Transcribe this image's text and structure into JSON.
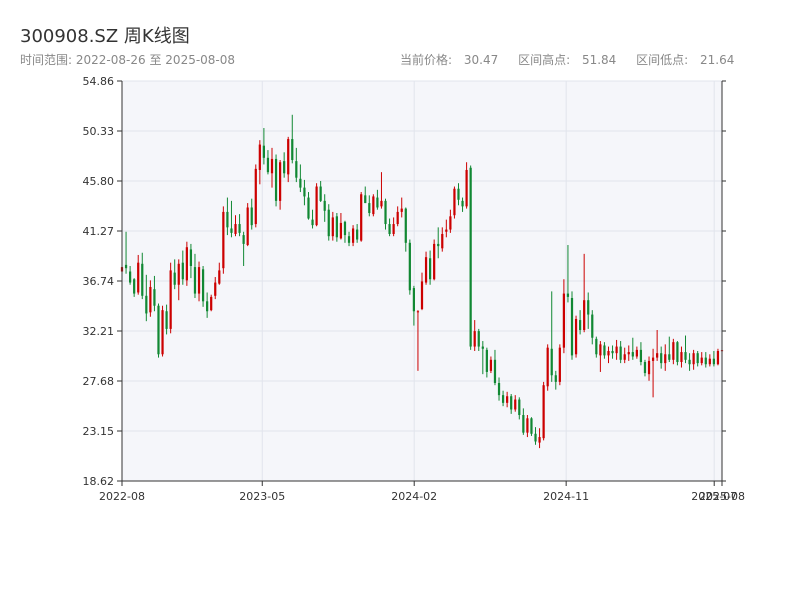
{
  "header": {
    "title": "300908.SZ 周K线图",
    "time_range_label": "时间范围:",
    "start_date": "2022-08-26",
    "range_separator": "至",
    "end_date": "2025-08-08",
    "current_price_label": "当前价格:",
    "current_price": "30.47",
    "high_label": "区间高点:",
    "high_value": "51.84",
    "low_label": "区间低点:",
    "low_value": "21.64"
  },
  "colors": {
    "up": "#cc0000",
    "down": "#118833",
    "plot_bg": "#f5f6fa",
    "grid": "#e1e4ec",
    "axis": "#333333"
  },
  "chart_data": {
    "type": "candlestick",
    "y_ticks": [
      "18.62",
      "23.15",
      "27.68",
      "32.21",
      "36.74",
      "41.27",
      "45.80",
      "50.33",
      "54.86"
    ],
    "ylim": [
      18.62,
      54.86
    ],
    "x_ticks": [
      {
        "label": "2022-08",
        "date": "2022-08-26"
      },
      {
        "label": "2023-05",
        "date": "2023-05-05"
      },
      {
        "label": "2024-02",
        "date": "2024-02-02"
      },
      {
        "label": "2024-11",
        "date": "2024-11-01"
      },
      {
        "label": "2025-07",
        "date": "2025-07-25"
      },
      {
        "label": "2025-08",
        "date": "2025-08-08"
      }
    ],
    "start_date": "2022-08-26",
    "end_date": "2025-08-08",
    "candles": [
      [
        37.6,
        38.5,
        36.0,
        38.0
      ],
      [
        38.2,
        41.2,
        37.4,
        37.9
      ],
      [
        37.6,
        38.1,
        36.4,
        36.6
      ],
      [
        36.9,
        37.0,
        35.3,
        35.6
      ],
      [
        35.7,
        39.1,
        35.5,
        38.4
      ],
      [
        38.3,
        39.3,
        35.1,
        35.4
      ],
      [
        35.4,
        37.3,
        33.1,
        33.8
      ],
      [
        33.9,
        36.8,
        33.5,
        36.2
      ],
      [
        36.0,
        37.2,
        34.0,
        34.5
      ],
      [
        34.5,
        34.7,
        29.8,
        30.1
      ],
      [
        30.1,
        34.5,
        29.9,
        34.1
      ],
      [
        34.0,
        34.6,
        31.9,
        32.4
      ],
      [
        32.4,
        38.4,
        32.0,
        37.7
      ],
      [
        37.5,
        38.7,
        36.0,
        36.4
      ],
      [
        36.4,
        38.7,
        35.0,
        38.3
      ],
      [
        38.4,
        39.5,
        36.4,
        36.9
      ],
      [
        36.8,
        40.3,
        36.3,
        39.8
      ],
      [
        39.6,
        40.1,
        37.0,
        38.1
      ],
      [
        38.0,
        39.2,
        35.2,
        35.6
      ],
      [
        35.6,
        38.5,
        34.9,
        38.0
      ],
      [
        37.8,
        38.1,
        34.4,
        34.9
      ],
      [
        34.9,
        35.7,
        33.4,
        34.0
      ],
      [
        34.1,
        35.5,
        34.0,
        35.3
      ],
      [
        35.4,
        37.1,
        35.1,
        36.6
      ],
      [
        36.5,
        38.4,
        36.4,
        37.7
      ],
      [
        37.9,
        43.5,
        37.4,
        43.0
      ],
      [
        43.0,
        44.3,
        40.9,
        41.6
      ],
      [
        41.5,
        44.0,
        40.7,
        41.1
      ],
      [
        41.0,
        42.7,
        40.8,
        41.9
      ],
      [
        41.9,
        42.8,
        40.8,
        41.1
      ],
      [
        40.9,
        41.2,
        38.1,
        40.1
      ],
      [
        40.0,
        43.8,
        39.9,
        43.4
      ],
      [
        43.4,
        44.2,
        41.4,
        41.8
      ],
      [
        41.9,
        47.3,
        41.6,
        46.9
      ],
      [
        46.8,
        49.5,
        45.5,
        49.1
      ],
      [
        49.0,
        50.6,
        47.3,
        47.9
      ],
      [
        47.9,
        48.6,
        46.4,
        46.6
      ],
      [
        46.5,
        48.8,
        45.2,
        47.8
      ],
      [
        47.8,
        48.2,
        43.5,
        44.0
      ],
      [
        44.0,
        47.7,
        43.2,
        47.5
      ],
      [
        47.6,
        48.4,
        46.1,
        46.5
      ],
      [
        46.4,
        49.8,
        45.7,
        49.6
      ],
      [
        49.6,
        51.8,
        47.4,
        47.7
      ],
      [
        47.6,
        48.8,
        45.7,
        46.1
      ],
      [
        46.0,
        47.3,
        44.8,
        45.2
      ],
      [
        45.2,
        45.9,
        43.6,
        44.4
      ],
      [
        44.3,
        44.8,
        42.3,
        42.4
      ],
      [
        42.3,
        43.2,
        41.5,
        41.8
      ],
      [
        41.8,
        45.6,
        41.7,
        45.3
      ],
      [
        45.3,
        45.8,
        43.9,
        44.0
      ],
      [
        44.0,
        44.6,
        42.1,
        43.1
      ],
      [
        43.2,
        43.7,
        40.4,
        40.8
      ],
      [
        40.8,
        43.0,
        40.4,
        42.5
      ],
      [
        42.6,
        42.9,
        40.3,
        40.7
      ],
      [
        40.6,
        42.9,
        40.5,
        42.0
      ],
      [
        42.1,
        42.2,
        40.2,
        40.9
      ],
      [
        40.8,
        41.2,
        39.9,
        40.2
      ],
      [
        40.2,
        41.8,
        39.9,
        41.5
      ],
      [
        41.4,
        41.9,
        40.2,
        40.5
      ],
      [
        40.4,
        44.8,
        40.3,
        44.6
      ],
      [
        44.5,
        45.3,
        43.8,
        43.8
      ],
      [
        43.8,
        44.5,
        42.6,
        42.9
      ],
      [
        42.8,
        44.6,
        42.6,
        44.4
      ],
      [
        44.3,
        45.0,
        43.2,
        43.4
      ],
      [
        43.5,
        46.6,
        43.3,
        44.0
      ],
      [
        44.0,
        44.2,
        41.4,
        41.9
      ],
      [
        41.9,
        42.4,
        40.8,
        41.0
      ],
      [
        41.0,
        42.5,
        40.8,
        41.9
      ],
      [
        41.9,
        43.5,
        41.7,
        43.0
      ],
      [
        43.0,
        44.3,
        42.5,
        43.3
      ],
      [
        43.3,
        43.4,
        39.4,
        40.2
      ],
      [
        40.2,
        40.5,
        35.5,
        35.9
      ],
      [
        36.1,
        36.3,
        32.7,
        34.0
      ],
      [
        33.9,
        34.1,
        28.6,
        34.0
      ],
      [
        34.2,
        37.5,
        34.1,
        36.7
      ],
      [
        36.6,
        39.4,
        36.4,
        38.9
      ],
      [
        38.8,
        39.5,
        36.4,
        36.9
      ],
      [
        36.9,
        40.5,
        36.8,
        40.1
      ],
      [
        40.1,
        41.6,
        38.8,
        39.9
      ],
      [
        39.7,
        41.6,
        39.4,
        41.0
      ],
      [
        41.2,
        42.3,
        40.7,
        41.4
      ],
      [
        41.4,
        43.2,
        41.1,
        42.6
      ],
      [
        42.7,
        45.3,
        42.4,
        45.1
      ],
      [
        45.1,
        45.6,
        43.6,
        44.1
      ],
      [
        44.0,
        44.3,
        43.0,
        43.5
      ],
      [
        43.5,
        47.5,
        43.3,
        46.8
      ],
      [
        47.0,
        47.2,
        30.5,
        30.8
      ],
      [
        30.8,
        33.2,
        30.4,
        32.2
      ],
      [
        32.2,
        32.4,
        30.4,
        30.8
      ],
      [
        30.8,
        31.3,
        28.3,
        30.6
      ],
      [
        30.5,
        30.7,
        28.0,
        28.5
      ],
      [
        28.6,
        29.9,
        28.4,
        29.6
      ],
      [
        29.6,
        30.5,
        27.3,
        27.5
      ],
      [
        27.5,
        28.0,
        25.9,
        26.4
      ],
      [
        26.4,
        26.8,
        25.4,
        25.7
      ],
      [
        25.7,
        26.7,
        25.3,
        26.3
      ],
      [
        26.3,
        26.5,
        24.7,
        25.1
      ],
      [
        25.1,
        26.4,
        24.9,
        26.0
      ],
      [
        26.0,
        26.2,
        24.2,
        24.6
      ],
      [
        24.6,
        25.2,
        22.8,
        23.0
      ],
      [
        23.0,
        24.6,
        22.6,
        24.3
      ],
      [
        24.3,
        24.4,
        22.7,
        22.9
      ],
      [
        22.9,
        23.5,
        21.9,
        22.2
      ],
      [
        22.1,
        23.4,
        21.6,
        22.6
      ],
      [
        22.5,
        27.6,
        22.3,
        27.3
      ],
      [
        27.2,
        31.0,
        26.8,
        30.7
      ],
      [
        30.6,
        35.8,
        27.6,
        28.2
      ],
      [
        28.2,
        28.6,
        26.9,
        27.6
      ],
      [
        27.6,
        31.0,
        27.3,
        30.7
      ],
      [
        30.7,
        36.9,
        30.2,
        35.6
      ],
      [
        35.6,
        40.0,
        34.8,
        35.3
      ],
      [
        35.2,
        35.8,
        29.6,
        30.0
      ],
      [
        30.1,
        33.6,
        29.8,
        33.3
      ],
      [
        33.2,
        34.1,
        31.9,
        32.3
      ],
      [
        32.3,
        39.2,
        32.1,
        35.0
      ],
      [
        35.0,
        35.7,
        32.4,
        33.7
      ],
      [
        33.7,
        34.1,
        31.0,
        31.6
      ],
      [
        31.5,
        31.7,
        29.8,
        30.1
      ],
      [
        30.0,
        31.3,
        28.5,
        31.0
      ],
      [
        30.9,
        31.2,
        29.7,
        30.0
      ],
      [
        30.0,
        30.8,
        29.3,
        30.4
      ],
      [
        30.4,
        30.9,
        29.7,
        30.2
      ],
      [
        30.2,
        31.4,
        29.6,
        30.8
      ],
      [
        30.8,
        31.3,
        29.3,
        29.6
      ],
      [
        29.6,
        30.7,
        29.3,
        30.1
      ],
      [
        30.1,
        30.9,
        29.5,
        30.3
      ],
      [
        30.3,
        31.6,
        29.6,
        29.9
      ],
      [
        29.9,
        30.8,
        29.7,
        30.5
      ],
      [
        30.5,
        31.2,
        29.1,
        29.4
      ],
      [
        29.4,
        29.6,
        28.1,
        28.4
      ],
      [
        28.3,
        29.9,
        27.7,
        29.5
      ],
      [
        29.5,
        30.6,
        26.2,
        29.8
      ],
      [
        29.8,
        32.3,
        29.5,
        30.2
      ],
      [
        30.2,
        30.8,
        28.8,
        29.3
      ],
      [
        29.3,
        31.0,
        28.6,
        30.1
      ],
      [
        30.1,
        31.7,
        29.4,
        29.6
      ],
      [
        29.6,
        31.5,
        29.2,
        31.2
      ],
      [
        31.2,
        31.3,
        29.1,
        29.4
      ],
      [
        29.4,
        30.8,
        28.9,
        30.3
      ],
      [
        30.3,
        31.8,
        29.3,
        29.6
      ],
      [
        29.6,
        30.2,
        28.6,
        29.2
      ],
      [
        29.2,
        30.5,
        28.7,
        30.2
      ],
      [
        30.2,
        30.4,
        29.0,
        29.3
      ],
      [
        29.3,
        30.3,
        29.1,
        29.8
      ],
      [
        29.8,
        30.3,
        28.9,
        29.2
      ],
      [
        29.2,
        30.1,
        29.0,
        29.7
      ],
      [
        29.7,
        30.4,
        29.0,
        29.2
      ],
      [
        29.2,
        30.6,
        29.1,
        30.4
      ],
      [
        30.4,
        31.1,
        30.0,
        30.47
      ]
    ]
  }
}
